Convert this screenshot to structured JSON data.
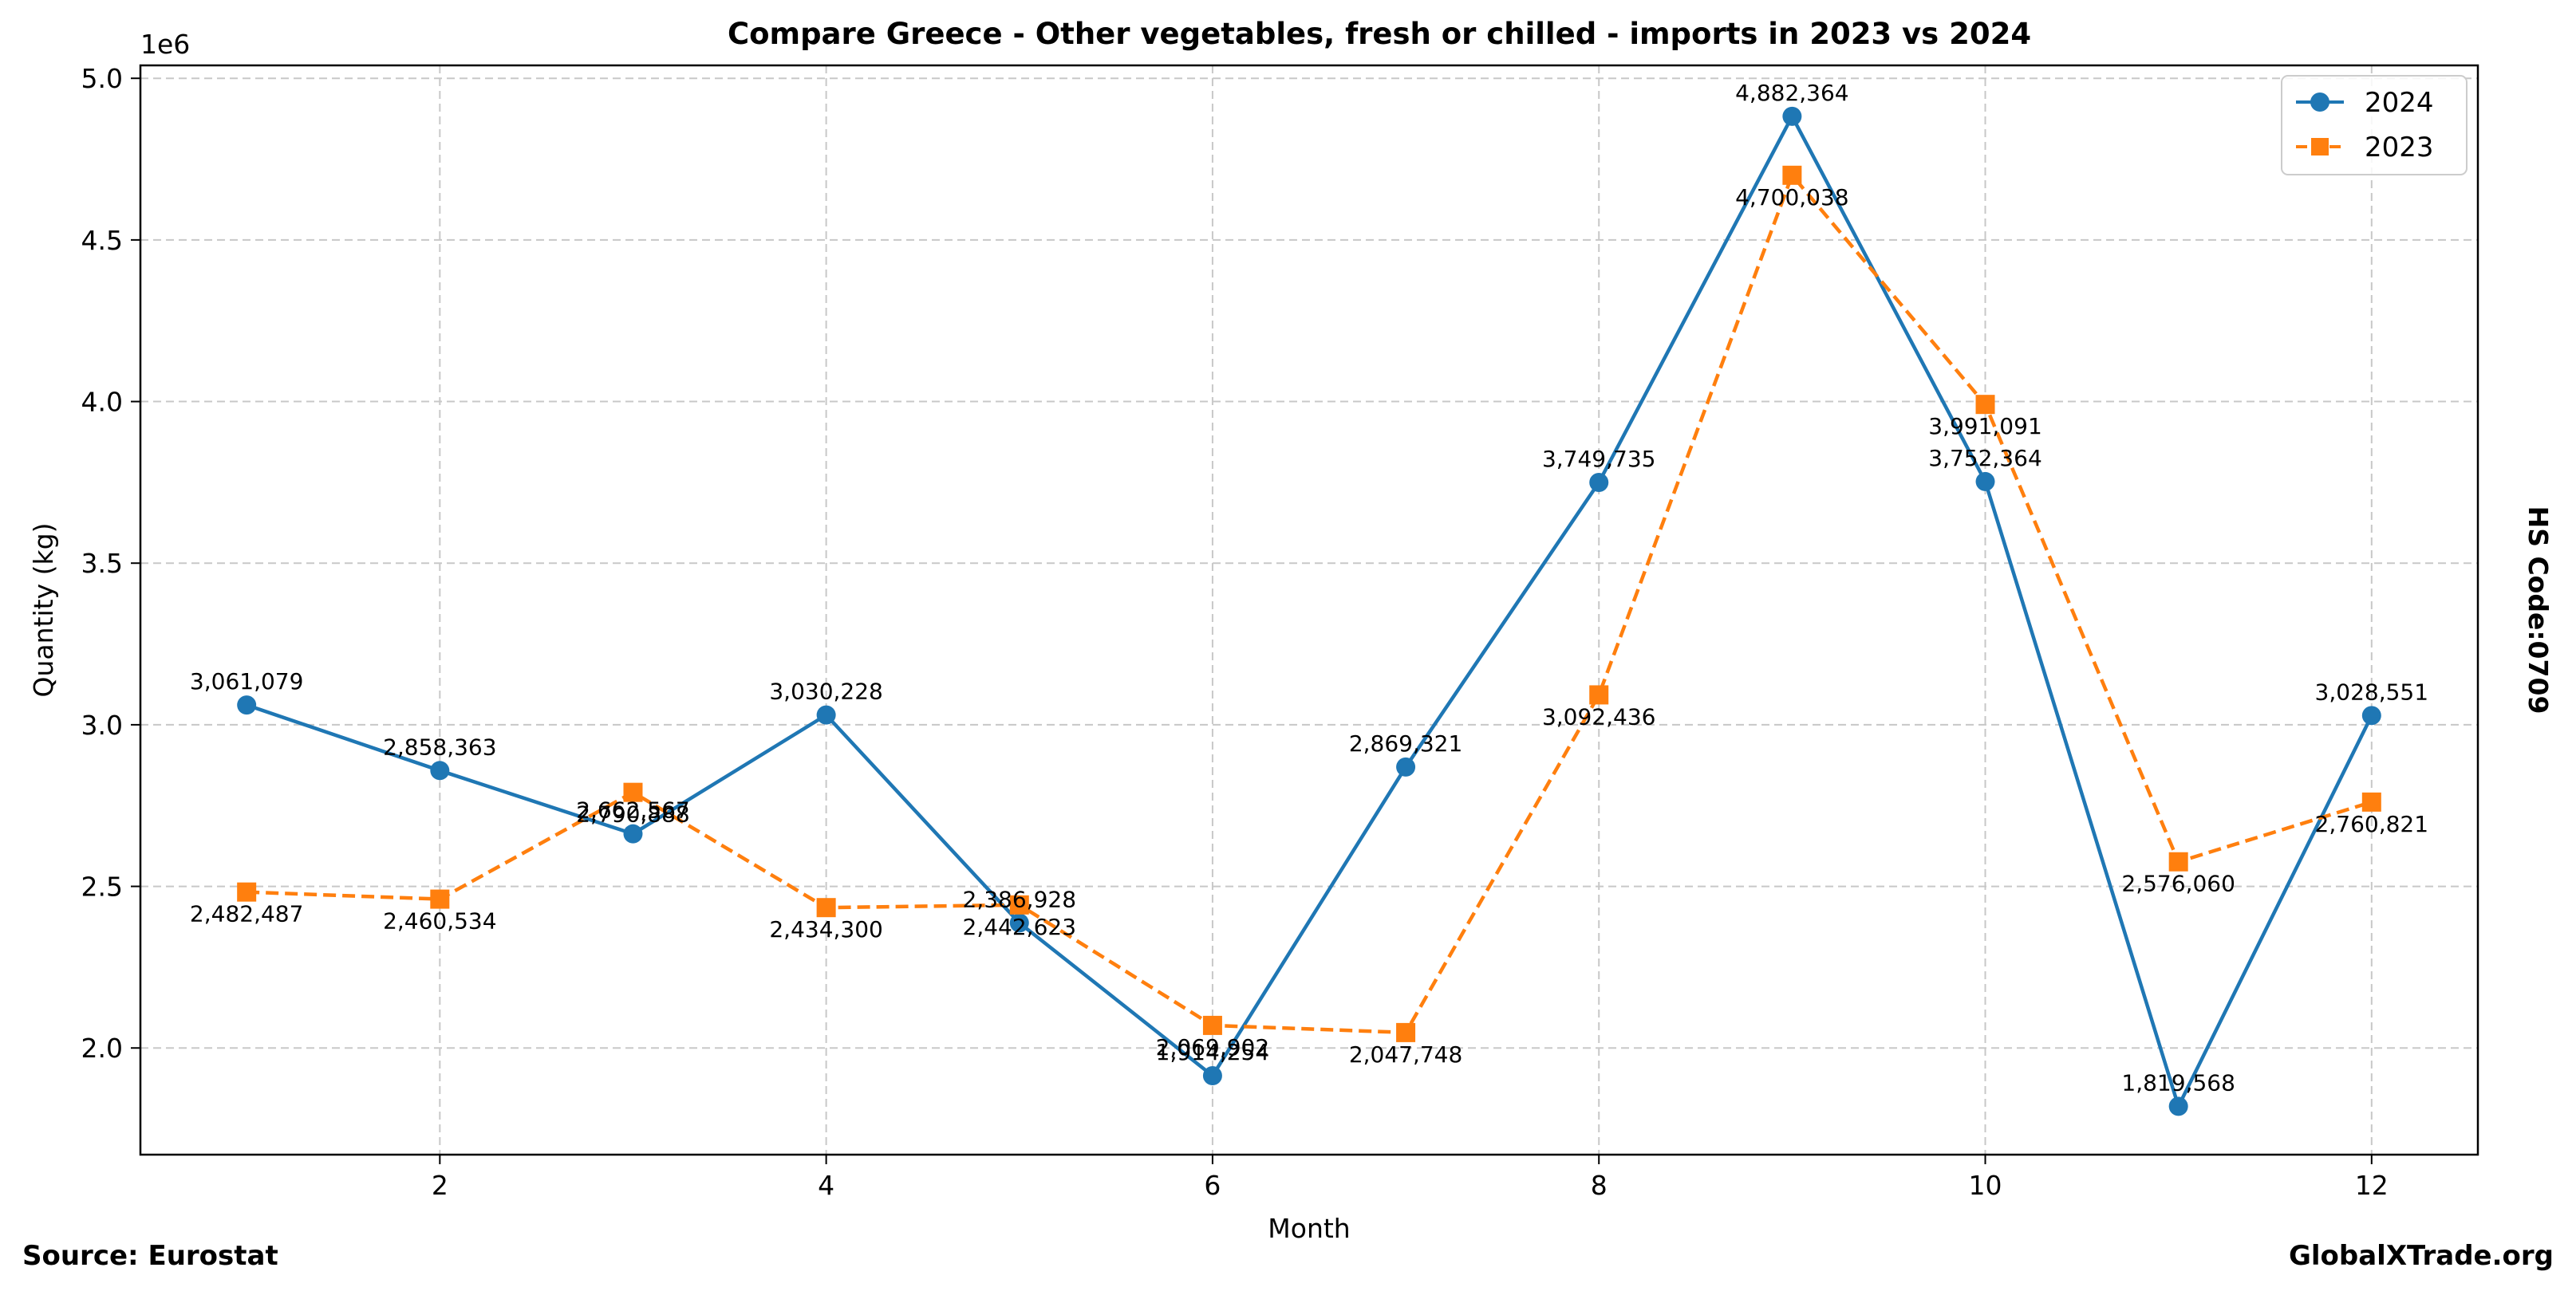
{
  "chart_data": {
    "type": "line",
    "title": "Compare Greece - Other vegetables, fresh or chilled - imports in 2023 vs 2024",
    "xlabel": "Month",
    "ylabel": "Quantity (kg)",
    "y_scale_label": "1e6",
    "right_label": "HS Code:0709",
    "x": [
      1,
      2,
      3,
      4,
      5,
      6,
      7,
      8,
      9,
      10,
      11,
      12
    ],
    "xlim": [
      0.45,
      12.55
    ],
    "ylim": [
      1.67,
      5.04
    ],
    "x_ticks": [
      2,
      4,
      6,
      8,
      10,
      12
    ],
    "y_ticks": [
      2.0,
      2.5,
      3.0,
      3.5,
      4.0,
      4.5,
      5.0
    ],
    "grid": true,
    "legend_position": "top-right",
    "series": [
      {
        "name": "2024",
        "color": "#1f77b4",
        "style": "solid",
        "marker": "circle",
        "values": [
          3061079,
          2858363,
          2662567,
          3030228,
          2386928,
          1914254,
          2869321,
          3749735,
          4882364,
          3752364,
          1819568,
          3028551
        ],
        "labels": [
          "3,061,079",
          "2,858,363",
          "2,662,567",
          "3,030,228",
          "2,386,928",
          "1,914,254",
          "2,869,321",
          "3,749,735",
          "4,882,364",
          "3,752,364",
          "1,819,568",
          "3,028,551"
        ]
      },
      {
        "name": "2023",
        "color": "#ff7f0e",
        "style": "dashed",
        "marker": "square",
        "values": [
          2482487,
          2460534,
          2790888,
          2434300,
          2442623,
          2069902,
          2047748,
          3092436,
          4700038,
          3991091,
          2576060,
          2760821
        ],
        "labels": [
          "2,482,487",
          "2,460,534",
          "2,790,888",
          "2,434,300",
          "2,442,623",
          "2,069,902",
          "2,047,748",
          "3,092,436",
          "4,700,038",
          "3,991,091",
          "2,576,060",
          "2,760,821"
        ]
      }
    ]
  },
  "footer": {
    "source": "Source: Eurostat",
    "site": "GlobalXTrade.org"
  }
}
